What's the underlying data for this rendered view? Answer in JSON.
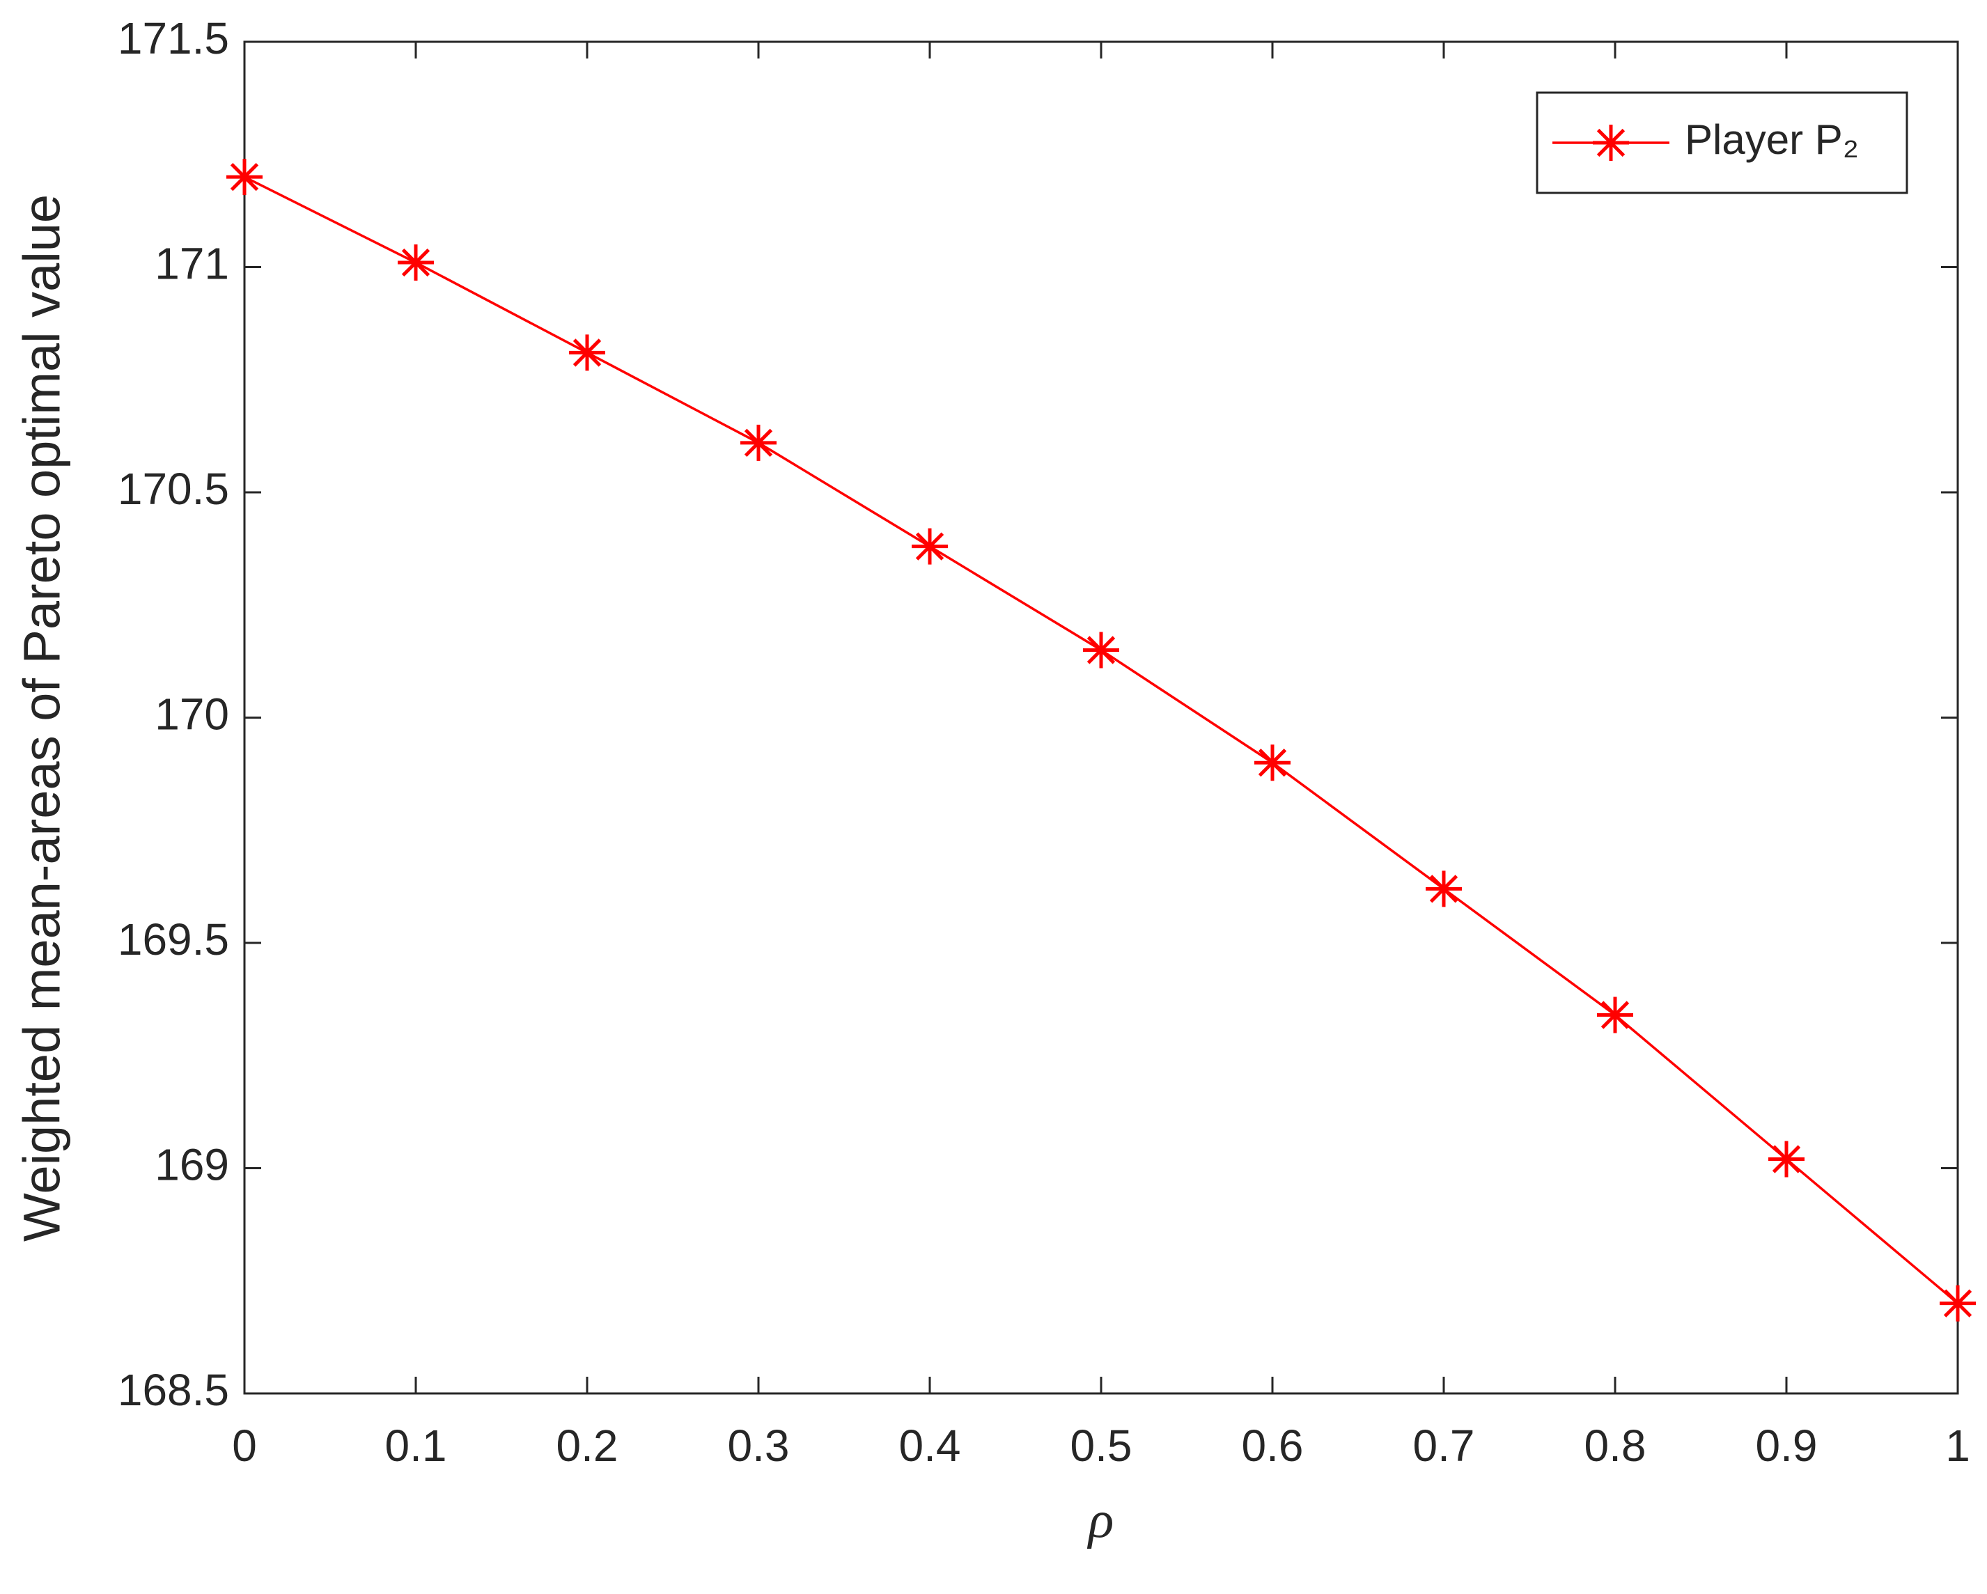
{
  "chart_data": {
    "type": "line",
    "x_label": "ρ",
    "y_label": "Weighted mean-areas of Pareto optimal value",
    "x": [
      0,
      0.1,
      0.2,
      0.3,
      0.4,
      0.5,
      0.6,
      0.7,
      0.8,
      0.9,
      1
    ],
    "series": [
      {
        "name": "Player P₂",
        "color": "#ff0000",
        "values": [
          171.2,
          171.01,
          170.81,
          170.61,
          170.38,
          170.15,
          169.9,
          169.62,
          169.34,
          169.02,
          168.7
        ]
      }
    ],
    "xlim": [
      0,
      1
    ],
    "xticks": [
      0,
      0.1,
      0.2,
      0.3,
      0.4,
      0.5,
      0.6,
      0.7,
      0.8,
      0.9,
      1
    ],
    "ylim": [
      168.5,
      171.5
    ],
    "yticks": [
      168.5,
      169,
      169.5,
      170,
      170.5,
      171,
      171.5
    ],
    "grid": false,
    "legend": "top-right",
    "marker": "asterisk"
  }
}
